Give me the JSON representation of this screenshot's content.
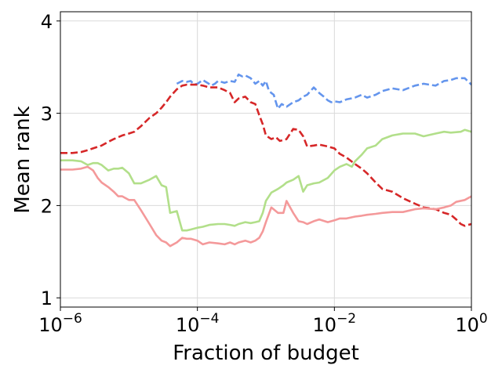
{
  "chart_data": {
    "type": "line",
    "title": "",
    "xlabel": "Fraction of budget",
    "ylabel": "Mean rank",
    "x_scale": "log",
    "xlim": [
      1e-06,
      1
    ],
    "ylim": [
      0.9,
      4.1
    ],
    "grid": true,
    "x_ticks": [
      {
        "value": 1e-06,
        "base": "10",
        "exp": "−6"
      },
      {
        "value": 0.0001,
        "base": "10",
        "exp": "−4"
      },
      {
        "value": 0.01,
        "base": "10",
        "exp": "−2"
      },
      {
        "value": 1,
        "base": "10",
        "exp": "0"
      }
    ],
    "y_ticks": [
      1,
      2,
      3,
      4
    ],
    "series": [
      {
        "color": "#6495ED",
        "dash": "dashed",
        "x": [
          5e-05,
          6e-05,
          7e-05,
          8e-05,
          9e-05,
          0.0001,
          0.00012,
          0.00014,
          0.00016,
          0.00018,
          0.0002,
          0.00025,
          0.0003,
          0.00035,
          0.0004,
          0.00045,
          0.0005,
          0.0006,
          0.0007,
          0.0008,
          0.0009,
          0.001,
          0.0011,
          0.0012,
          0.0013,
          0.0014,
          0.0015,
          0.0017,
          0.002,
          0.0025,
          0.003,
          0.0035,
          0.004,
          0.005,
          0.006,
          0.007,
          0.008,
          0.009,
          0.01,
          0.012,
          0.015,
          0.02,
          0.025,
          0.03,
          0.04,
          0.05,
          0.07,
          0.1,
          0.15,
          0.2,
          0.3,
          0.4,
          0.5,
          0.6,
          0.8,
          1
        ],
        "y": [
          3.32,
          3.35,
          3.34,
          3.35,
          3.31,
          3.32,
          3.36,
          3.33,
          3.3,
          3.32,
          3.35,
          3.33,
          3.35,
          3.34,
          3.42,
          3.4,
          3.41,
          3.38,
          3.32,
          3.35,
          3.3,
          3.35,
          3.25,
          3.22,
          3.2,
          3.12,
          3.05,
          3.1,
          3.07,
          3.12,
          3.14,
          3.18,
          3.2,
          3.28,
          3.22,
          3.18,
          3.14,
          3.12,
          3.13,
          3.12,
          3.15,
          3.17,
          3.2,
          3.17,
          3.2,
          3.24,
          3.27,
          3.25,
          3.3,
          3.32,
          3.3,
          3.35,
          3.36,
          3.38,
          3.38,
          3.31
        ]
      },
      {
        "color": "#D62728",
        "dash": "dashed",
        "x": [
          1e-06,
          1.5e-06,
          2e-06,
          2.5e-06,
          3e-06,
          4e-06,
          5e-06,
          6e-06,
          8e-06,
          1e-05,
          1.2e-05,
          1.5e-05,
          2e-05,
          2.5e-05,
          3e-05,
          3.5e-05,
          4e-05,
          5e-05,
          6e-05,
          7e-05,
          8e-05,
          0.0001,
          0.00012,
          0.00015,
          0.0002,
          0.00025,
          0.0003,
          0.00035,
          0.0004,
          0.0005,
          0.0006,
          0.0007,
          0.0008,
          0.0009,
          0.001,
          0.0012,
          0.0014,
          0.0016,
          0.0018,
          0.002,
          0.0025,
          0.003,
          0.0035,
          0.004,
          0.005,
          0.006,
          0.008,
          0.01,
          0.012,
          0.015,
          0.02,
          0.025,
          0.03,
          0.04,
          0.05,
          0.07,
          0.1,
          0.15,
          0.2,
          0.3,
          0.4,
          0.5,
          0.6,
          0.7,
          0.8,
          1
        ],
        "y": [
          2.57,
          2.57,
          2.58,
          2.6,
          2.62,
          2.65,
          2.69,
          2.72,
          2.76,
          2.78,
          2.8,
          2.86,
          2.95,
          3.0,
          3.06,
          3.12,
          3.18,
          3.26,
          3.3,
          3.31,
          3.31,
          3.31,
          3.3,
          3.28,
          3.28,
          3.25,
          3.22,
          3.12,
          3.16,
          3.18,
          3.12,
          3.1,
          2.98,
          2.88,
          2.76,
          2.72,
          2.74,
          2.7,
          2.71,
          2.72,
          2.83,
          2.82,
          2.75,
          2.64,
          2.65,
          2.66,
          2.64,
          2.62,
          2.56,
          2.52,
          2.45,
          2.4,
          2.35,
          2.25,
          2.18,
          2.15,
          2.08,
          2.02,
          1.98,
          1.96,
          1.92,
          1.9,
          1.85,
          1.8,
          1.78,
          1.8
        ]
      },
      {
        "color": "#B2DF8A",
        "dash": "solid",
        "x": [
          1e-06,
          1.5e-06,
          2e-06,
          2.5e-06,
          3e-06,
          3.5e-06,
          4e-06,
          5e-06,
          6e-06,
          7e-06,
          8e-06,
          1e-05,
          1.2e-05,
          1.5e-05,
          2e-05,
          2.5e-05,
          3e-05,
          3.5e-05,
          4e-05,
          5e-05,
          6e-05,
          7e-05,
          8e-05,
          0.0001,
          0.00012,
          0.00015,
          0.0002,
          0.00025,
          0.0003,
          0.00035,
          0.0004,
          0.0005,
          0.0006,
          0.0007,
          0.0008,
          0.0009,
          0.001,
          0.0012,
          0.0015,
          0.0018,
          0.002,
          0.0025,
          0.003,
          0.0035,
          0.004,
          0.005,
          0.006,
          0.008,
          0.01,
          0.012,
          0.015,
          0.018,
          0.02,
          0.025,
          0.03,
          0.04,
          0.05,
          0.07,
          0.1,
          0.15,
          0.2,
          0.3,
          0.4,
          0.5,
          0.7,
          0.8,
          1
        ],
        "y": [
          2.49,
          2.49,
          2.48,
          2.44,
          2.46,
          2.46,
          2.44,
          2.38,
          2.4,
          2.4,
          2.41,
          2.35,
          2.24,
          2.24,
          2.28,
          2.32,
          2.22,
          2.2,
          1.92,
          1.94,
          1.73,
          1.73,
          1.74,
          1.76,
          1.77,
          1.79,
          1.8,
          1.8,
          1.79,
          1.78,
          1.8,
          1.82,
          1.81,
          1.82,
          1.83,
          1.92,
          2.05,
          2.14,
          2.18,
          2.22,
          2.25,
          2.28,
          2.32,
          2.15,
          2.22,
          2.24,
          2.25,
          2.3,
          2.38,
          2.42,
          2.45,
          2.42,
          2.48,
          2.55,
          2.62,
          2.65,
          2.72,
          2.76,
          2.78,
          2.78,
          2.75,
          2.78,
          2.8,
          2.79,
          2.8,
          2.82,
          2.8
        ]
      },
      {
        "color": "#F4999A",
        "dash": "solid",
        "x": [
          1e-06,
          1.5e-06,
          2e-06,
          2.5e-06,
          3e-06,
          3.5e-06,
          4e-06,
          5e-06,
          6e-06,
          7e-06,
          8e-06,
          1e-05,
          1.2e-05,
          1.5e-05,
          2e-05,
          2.5e-05,
          3e-05,
          3.5e-05,
          4e-05,
          5e-05,
          6e-05,
          7e-05,
          8e-05,
          0.0001,
          0.00012,
          0.00015,
          0.0002,
          0.00025,
          0.0003,
          0.00035,
          0.0004,
          0.0005,
          0.0006,
          0.0007,
          0.0008,
          0.0009,
          0.001,
          0.0012,
          0.0015,
          0.0018,
          0.002,
          0.0025,
          0.003,
          0.0035,
          0.004,
          0.005,
          0.006,
          0.008,
          0.01,
          0.012,
          0.015,
          0.02,
          0.025,
          0.03,
          0.04,
          0.05,
          0.07,
          0.1,
          0.15,
          0.2,
          0.3,
          0.4,
          0.5,
          0.6,
          0.8,
          1
        ],
        "y": [
          2.39,
          2.39,
          2.4,
          2.42,
          2.38,
          2.3,
          2.25,
          2.2,
          2.15,
          2.1,
          2.1,
          2.06,
          2.06,
          1.95,
          1.8,
          1.68,
          1.62,
          1.6,
          1.56,
          1.6,
          1.65,
          1.64,
          1.64,
          1.62,
          1.58,
          1.6,
          1.59,
          1.58,
          1.6,
          1.58,
          1.6,
          1.62,
          1.6,
          1.62,
          1.65,
          1.72,
          1.82,
          1.98,
          1.92,
          1.92,
          2.05,
          1.92,
          1.83,
          1.82,
          1.8,
          1.83,
          1.85,
          1.82,
          1.84,
          1.86,
          1.86,
          1.88,
          1.89,
          1.9,
          1.91,
          1.92,
          1.93,
          1.93,
          1.96,
          1.97,
          1.96,
          1.98,
          2.0,
          2.04,
          2.06,
          2.1
        ]
      }
    ]
  }
}
